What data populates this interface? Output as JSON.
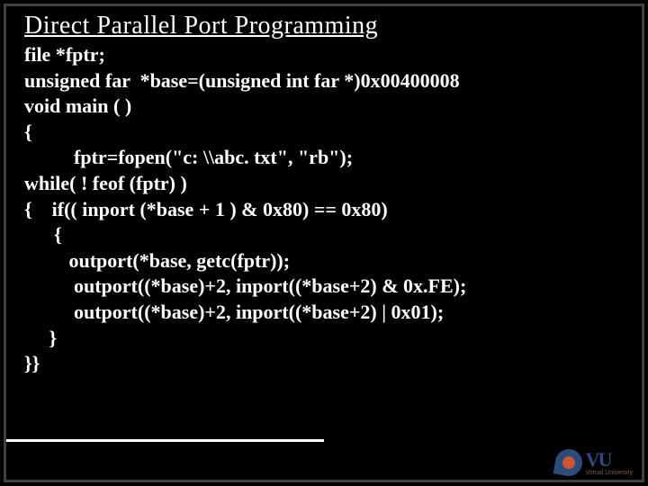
{
  "slide": {
    "title": "Direct Parallel Port Programming",
    "code": {
      "l1": "file *fptr;",
      "l2": "unsigned far  *base=(unsigned int far *)0x00400008",
      "l3": "void main ( )",
      "l4": "{",
      "l5": "          fptr=fopen(\"c: \\\\abc. txt\", \"rb\");",
      "l6": "while( ! feof (fptr) )",
      "l7": "{    if(( inport (*base + 1 ) & 0x80) == 0x80)",
      "l8": "      {",
      "l9": "         outport(*base, getc(fptr));",
      "l10": "          outport((*base)+2, inport((*base+2) & 0x.FE);",
      "l11": "          outport((*base)+2, inport((*base+2) | 0x01);",
      "l12": "     }",
      "l13": "}}"
    },
    "logo": {
      "main": "VU",
      "sub": "Virtual University"
    },
    "colors": {
      "background": "#000000",
      "text": "#ffffff",
      "frame_border": "#404040",
      "hr": "#ffffff",
      "logo_blue": "#2a4b7c",
      "logo_orange": "#cc5533",
      "logo_sub": "#7a5a4a"
    },
    "fonts": {
      "title_size_pt": 28,
      "code_size_pt": 22,
      "code_weight": "bold",
      "family": "Times New Roman"
    }
  }
}
